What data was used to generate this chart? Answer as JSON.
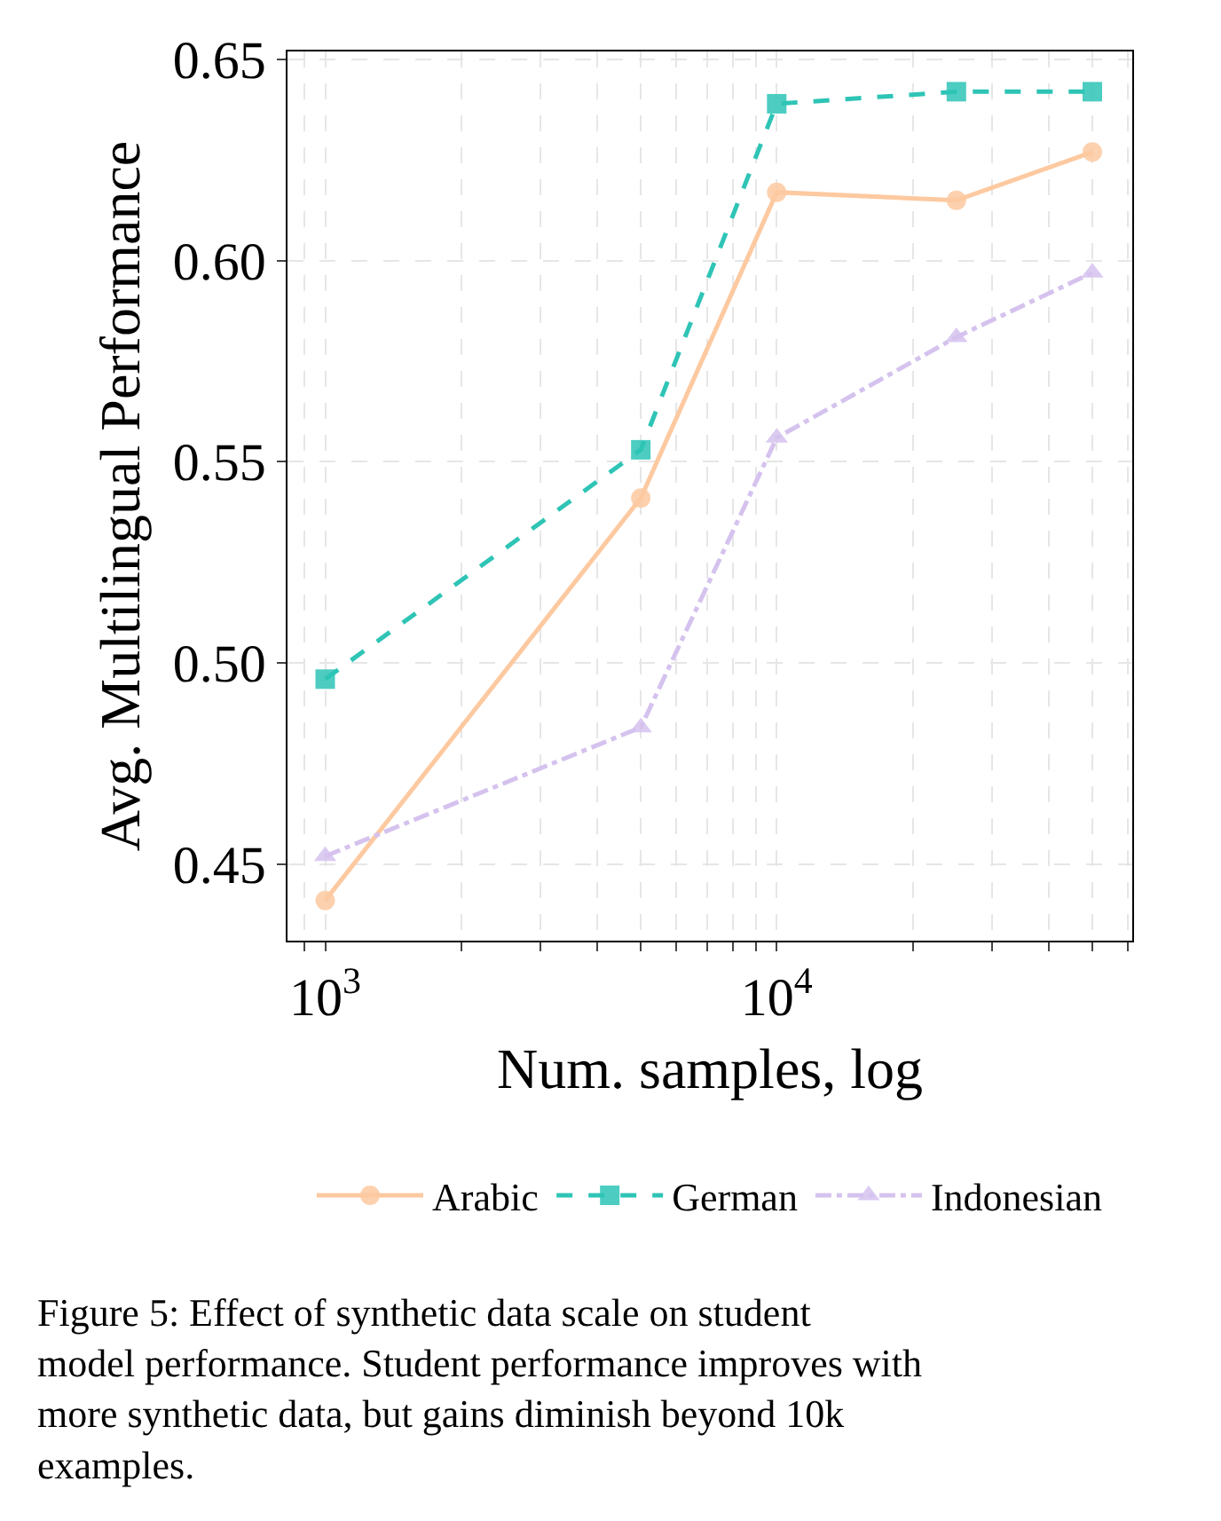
{
  "chart_data": {
    "type": "line",
    "xlabel": "Num. samples, log",
    "ylabel": "Avg. Multilingual Performance",
    "x": [
      1000,
      5000,
      10000,
      25000,
      50000
    ],
    "series": [
      {
        "name": "Arabic",
        "color": "#fdc9a0",
        "marker": "circle",
        "line_style": "solid",
        "values": [
          0.441,
          0.541,
          0.617,
          0.615,
          0.627
        ]
      },
      {
        "name": "German",
        "color": "#2ec4b6",
        "marker": "square",
        "line_style": "dashed",
        "values": [
          0.496,
          0.553,
          0.639,
          0.642,
          0.642
        ]
      },
      {
        "name": "Indonesian",
        "color": "#d5c2ee",
        "marker": "triangle",
        "line_style": "dashdot",
        "values": [
          0.452,
          0.484,
          0.556,
          0.581,
          0.597
        ]
      }
    ],
    "log": "x",
    "xlim": [
      825,
      61300
    ],
    "ylim": [
      0.431,
      0.652
    ],
    "xticks": [
      {
        "value": 900,
        "label": null
      },
      {
        "value": 1000,
        "label": "10$^{3}$"
      },
      {
        "value": 2000,
        "label": null
      },
      {
        "value": 3000,
        "label": null
      },
      {
        "value": 4000,
        "label": null
      },
      {
        "value": 5000,
        "label": null
      },
      {
        "value": 6000,
        "label": null
      },
      {
        "value": 7000,
        "label": null
      },
      {
        "value": 8000,
        "label": null
      },
      {
        "value": 9000,
        "label": null
      },
      {
        "value": 10000,
        "label": "10$^{4}$"
      },
      {
        "value": 20000,
        "label": null
      },
      {
        "value": 30000,
        "label": null
      },
      {
        "value": 40000,
        "label": null
      },
      {
        "value": 50000,
        "label": null
      },
      {
        "value": 60000,
        "label": null
      }
    ],
    "yticks": [
      0.45,
      {
        "value": 0.5,
        "label": "0.50"
      },
      0.55,
      {
        "value": 0.6,
        "label": "0.60"
      },
      0.65
    ],
    "grid": true,
    "legend": "bottom",
    "annotations": [
      "Figure 5: Effect of synthetic data scale on student model performance. Student performance improves with more synthetic data, but gains diminish beyond 10k examples."
    ]
  }
}
